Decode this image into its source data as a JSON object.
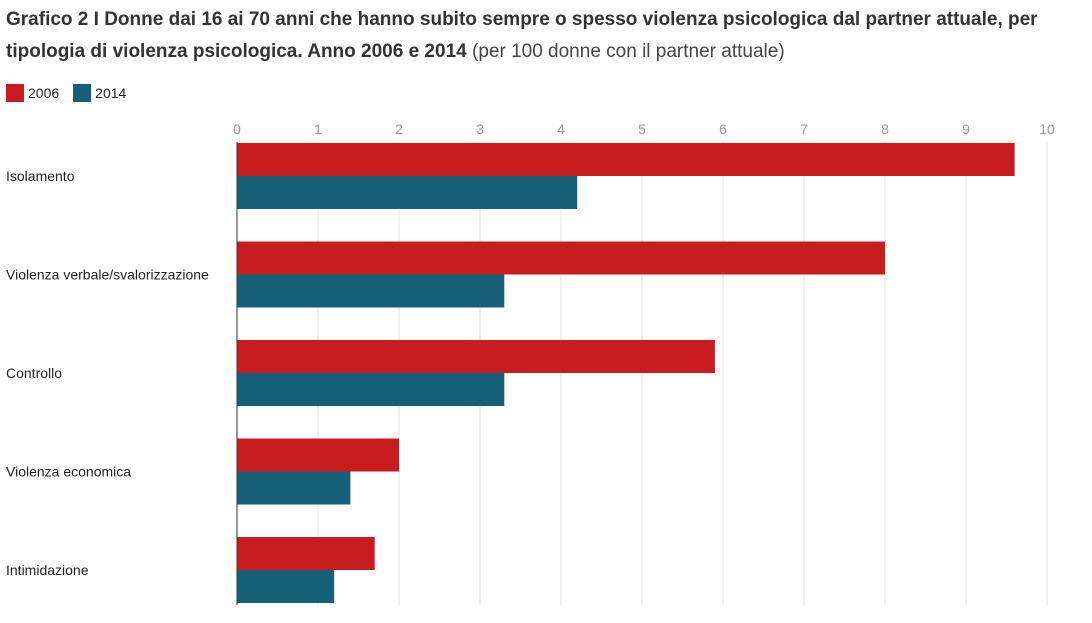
{
  "header": {
    "title": "Grafico 2 I Donne dai 16 ai 70 anni che hanno subito sempre o spesso violenza psicologica dal partner attuale, per tipologia di violenza psicologica.  Anno 2006 e 2014",
    "subtitle": "(per 100 donne con il partner attuale)"
  },
  "legend": [
    {
      "label": "2006",
      "color": "#c81c1f"
    },
    {
      "label": "2014",
      "color": "#17607a"
    }
  ],
  "chart_data": {
    "type": "bar",
    "orientation": "horizontal",
    "title": "Grafico 2 I Donne dai 16 ai 70 anni che hanno subito sempre o spesso violenza psicologica dal partner attuale, per tipologia di violenza psicologica.  Anno 2006 e 2014",
    "subtitle": "(per 100 donne con il partner attuale)",
    "categories": [
      "Isolamento",
      "Violenza verbale/svalorizzazione",
      "Controllo",
      "Violenza economica",
      "Intimidazione"
    ],
    "series": [
      {
        "name": "2006",
        "color": "#c81c1f",
        "values": [
          9.6,
          8.0,
          5.9,
          2.0,
          1.7
        ]
      },
      {
        "name": "2014",
        "color": "#17607a",
        "values": [
          4.2,
          3.3,
          3.3,
          1.4,
          1.2
        ]
      }
    ],
    "xlim": [
      0,
      10
    ],
    "ticks": [
      "0",
      "1",
      "2",
      "3",
      "4",
      "5",
      "6",
      "7",
      "8",
      "9",
      "10"
    ],
    "grid": true,
    "legend_position": "top-left"
  }
}
